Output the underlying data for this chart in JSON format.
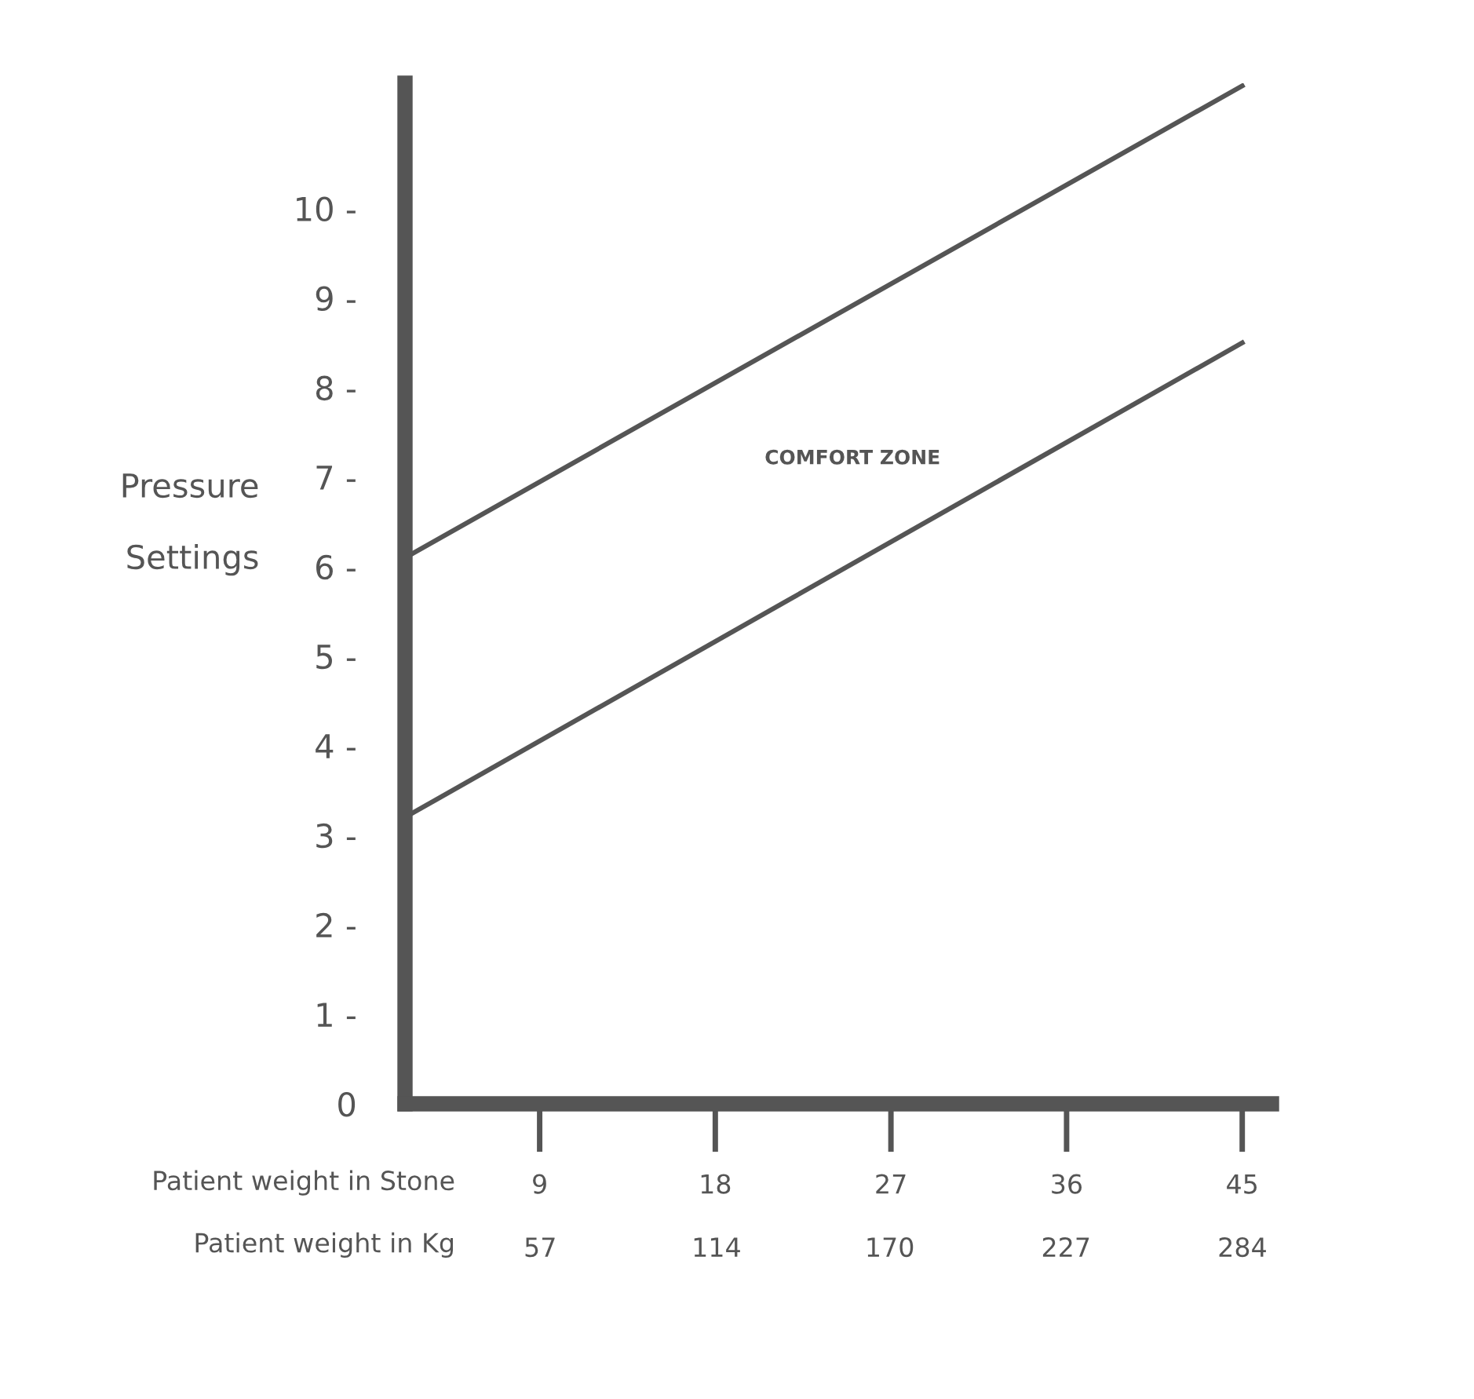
{
  "chart_data": {
    "type": "line",
    "xlabel": "Patient weight in Stone",
    "x2label": "Patient weight in Kg",
    "ylabel": "Pressure\nSettings",
    "x": [
      2.1,
      45
    ],
    "series": [
      {
        "color": "#555555",
        "values": [
          6.1,
          11.37
        ]
      },
      {
        "color": "#555555",
        "values": [
          3.2,
          8.5
        ]
      }
    ],
    "xlim": [
      2.1,
      46.5
    ],
    "xticks": [
      9,
      18,
      27,
      36,
      45
    ],
    "x2lim": [
      13.3,
      293.4
    ],
    "x2ticks": [
      57,
      114,
      170,
      227,
      284
    ],
    "ylim": [
      0,
      11.4
    ],
    "yticks": [
      {
        "value": 0,
        "label": "0"
      },
      {
        "value": 1,
        "label": "1 -"
      },
      {
        "value": 2,
        "label": "2 -"
      },
      {
        "value": 3,
        "label": "3 -"
      },
      {
        "value": 4,
        "label": "4 -"
      },
      {
        "value": 5,
        "label": "5 -"
      },
      {
        "value": 6,
        "label": "6 -"
      },
      {
        "value": 7,
        "label": "7 -"
      },
      {
        "value": 8,
        "label": "8 -"
      },
      {
        "value": 9,
        "label": "9 -"
      },
      {
        "value": 10,
        "label": "10 -"
      }
    ],
    "annotations": [
      "COMFORT ZONE"
    ],
    "grid": false,
    "legend": false,
    "marker": "none",
    "line_style": "solid"
  }
}
